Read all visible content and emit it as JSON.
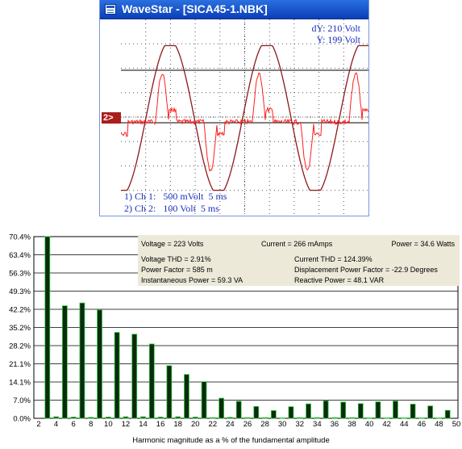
{
  "window": {
    "title": "WaveStar - [SICA45-1.NBK]"
  },
  "scope": {
    "dy_readout": "dY: 210 Volt",
    "y_readout": "Y: 199 Volt",
    "ref_marker": "2>",
    "ch1_label": "1) Ch 1:   500 mVolt  5 ms",
    "ch2_label": "2) Ch 2:   100 Volt  5 ms",
    "colors": {
      "voltage_trace": "#8b1a1a",
      "current_trace": "#ff1e1e",
      "text": "#1a2fc0",
      "grid": "#000000"
    }
  },
  "harmonics": {
    "info": {
      "voltage": "Voltage = 223 Volts",
      "current": "Current = 266 mAmps",
      "power": "Power = 34.6 Watts",
      "voltage_thd": "Voltage THD =  2.91%",
      "current_thd": "Current THD = 124.39%",
      "power_factor": "Power Factor = 585 m",
      "displacement_pf": "Displacement Power Factor = -22.9 Degrees",
      "instantaneous_power": "Instantaneous Power = 59.3 VA",
      "reactive_power": "Reactive Power = 48.1 VAR"
    },
    "x_axis_title": "Harmonic magnitude as a % of the fundamental amplitude",
    "colors": {
      "bar": "#0d2a10",
      "bar_edge": "#2ecf3a",
      "panel": "#ece9d8"
    }
  },
  "chart_data": {
    "type": "bar",
    "title": "",
    "xlabel": "Harmonic magnitude as a % of the fundamental amplitude",
    "ylabel": "",
    "y_ticks": [
      "70.4%",
      "63.4%",
      "56.3%",
      "49.3%",
      "42.2%",
      "35.2%",
      "28.2%",
      "21.1%",
      "14.1%",
      "7.0%",
      "0.0%"
    ],
    "x_ticks": [
      "2",
      "4",
      "6",
      "8",
      "10",
      "12",
      "14",
      "16",
      "18",
      "20",
      "22",
      "24",
      "26",
      "28",
      "30",
      "32",
      "34",
      "36",
      "38",
      "40",
      "42",
      "44",
      "46",
      "48",
      "50"
    ],
    "ylim": [
      0,
      70.4
    ],
    "xlim": [
      2,
      50
    ],
    "grid": true,
    "orders": [
      3,
      4,
      5,
      6,
      7,
      8,
      9,
      10,
      11,
      12,
      13,
      14,
      15,
      16,
      17,
      18,
      19,
      20,
      21,
      22,
      23,
      24,
      25,
      26,
      27,
      28,
      29,
      30,
      31,
      32,
      33,
      34,
      35,
      36,
      37,
      38,
      39,
      40,
      41,
      42,
      43,
      44,
      45,
      46,
      47,
      48,
      49
    ],
    "values": [
      70.4,
      0.6,
      43.6,
      0.5,
      44.7,
      0.4,
      42.0,
      0.5,
      33.3,
      0.6,
      32.6,
      0.6,
      28.8,
      0.5,
      20.4,
      0.6,
      17.0,
      0.5,
      14.2,
      0.3,
      7.8,
      0.4,
      6.6,
      0.3,
      4.6,
      0.3,
      3.0,
      0.2,
      4.5,
      0.3,
      5.6,
      0.3,
      6.8,
      0.3,
      6.3,
      0.3,
      5.7,
      0.2,
      6.4,
      0.2,
      6.7,
      0.2,
      5.5,
      0.2,
      4.8,
      0.2,
      3.1
    ]
  }
}
